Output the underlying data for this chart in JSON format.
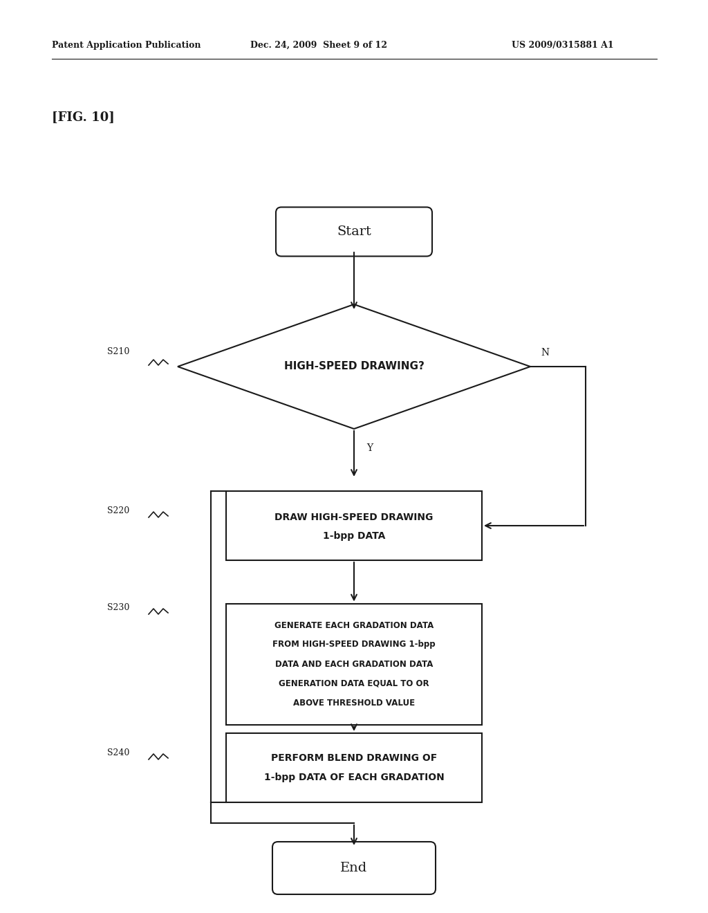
{
  "bg_color": "#ffffff",
  "header_left": "Patent Application Publication",
  "header_mid": "Dec. 24, 2009  Sheet 9 of 12",
  "header_right": "US 2009/0315881 A1",
  "fig_label": "[FIG. 10]",
  "start_text": "Start",
  "end_text": "End",
  "diamond_text": "HIGH-SPEED DRAWING?",
  "box1_line1": "DRAW HIGH-SPEED DRAWING",
  "box1_line2": "1-bpp DATA",
  "box2_lines": [
    "GENERATE EACH GRADATION DATA",
    "FROM HIGH-SPEED DRAWING 1-bpp",
    "DATA AND EACH GRADATION DATA",
    "GENERATION DATA EQUAL TO OR",
    "ABOVE THRESHOLD VALUE"
  ],
  "box3_line1": "PERFORM BLEND DRAWING OF",
  "box3_line2": "1-bpp DATA OF EACH GRADATION",
  "label_s210": "S210",
  "label_s220": "S220",
  "label_s230": "S230",
  "label_s240": "S240",
  "label_Y": "Y",
  "label_N": "N",
  "line_color": "#1a1a1a",
  "text_color": "#1a1a1a"
}
